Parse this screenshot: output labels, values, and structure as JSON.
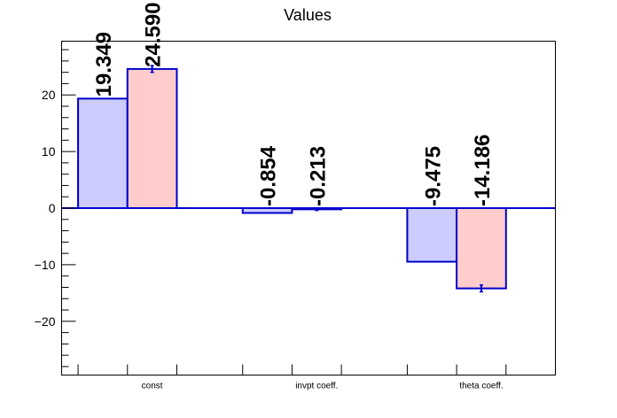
{
  "chart_data": {
    "type": "bar",
    "title": "Values",
    "categories": [
      "const",
      "invpt coeff.",
      "theta coeff."
    ],
    "series": [
      {
        "values": [
          19.349,
          -0.854,
          -9.475
        ],
        "errors": [
          0,
          0,
          0
        ],
        "color": "#ccccff"
      },
      {
        "values": [
          24.59,
          -0.213,
          -14.186
        ],
        "errors": [
          0.6,
          0.2,
          0.6
        ],
        "color": "#ffcccc"
      }
    ],
    "value_labels": [
      [
        "19.349",
        "-0.854",
        "-9.475"
      ],
      [
        "24.590",
        "-0.213",
        "-14.186"
      ]
    ],
    "ylim": [
      -29.5,
      29.5
    ],
    "yticks": [
      -20,
      -10,
      0,
      10,
      20
    ],
    "ytick_labels": [
      "−20",
      "−10",
      "0",
      "10",
      "20"
    ],
    "grid": false,
    "bar_edge_color": "#0000cc",
    "axis_color": "#000000"
  }
}
